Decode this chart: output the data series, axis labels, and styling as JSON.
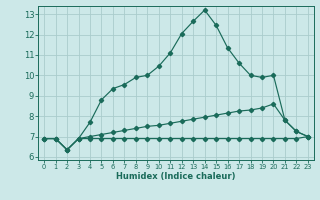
{
  "xlabel": "Humidex (Indice chaleur)",
  "background_color": "#cce8e8",
  "grid_color": "#aacccc",
  "line_color": "#1a6b5a",
  "xlim": [
    -0.5,
    23.5
  ],
  "ylim": [
    5.85,
    13.4
  ],
  "xticks": [
    0,
    1,
    2,
    3,
    4,
    5,
    6,
    7,
    8,
    9,
    10,
    11,
    12,
    13,
    14,
    15,
    16,
    17,
    18,
    19,
    20,
    21,
    22,
    23
  ],
  "yticks": [
    6,
    7,
    8,
    9,
    10,
    11,
    12,
    13
  ],
  "line1_x": [
    0,
    1,
    2,
    3,
    4,
    5,
    6,
    7,
    8,
    9,
    10,
    11,
    12,
    13,
    14,
    15,
    16,
    17,
    18,
    19,
    20,
    21,
    22,
    23
  ],
  "line1_y": [
    6.9,
    6.9,
    6.35,
    6.9,
    6.9,
    6.9,
    6.9,
    6.9,
    6.9,
    6.9,
    6.9,
    6.9,
    6.9,
    6.9,
    6.9,
    6.9,
    6.9,
    6.9,
    6.9,
    6.9,
    6.9,
    6.9,
    6.9,
    7.0
  ],
  "line2_x": [
    0,
    1,
    2,
    3,
    4,
    5,
    6,
    7,
    8,
    9,
    10,
    11,
    12,
    13,
    14,
    15,
    16,
    17,
    18,
    19,
    20,
    21,
    22,
    23
  ],
  "line2_y": [
    6.9,
    6.9,
    6.35,
    6.9,
    7.0,
    7.1,
    7.2,
    7.3,
    7.4,
    7.5,
    7.55,
    7.65,
    7.75,
    7.85,
    7.95,
    8.05,
    8.15,
    8.25,
    8.3,
    8.4,
    8.6,
    7.8,
    7.25,
    7.0
  ],
  "line3_x": [
    0,
    1,
    2,
    3,
    4,
    5,
    6,
    7,
    8,
    9,
    10,
    11,
    12,
    13,
    14,
    15,
    16,
    17,
    18,
    19,
    20,
    21,
    22,
    23
  ],
  "line3_y": [
    6.9,
    6.9,
    6.35,
    6.9,
    7.7,
    8.8,
    9.35,
    9.55,
    9.9,
    10.0,
    10.45,
    11.1,
    12.05,
    12.65,
    13.2,
    12.45,
    11.35,
    10.6,
    10.0,
    9.9,
    10.0,
    7.8,
    7.25,
    7.0
  ]
}
